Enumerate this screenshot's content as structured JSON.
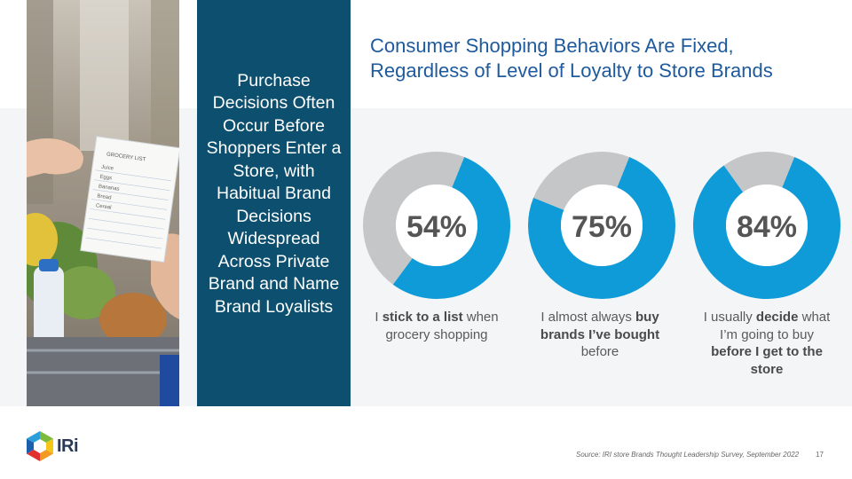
{
  "sidebar": {
    "text": "Purchase Decisions Often Occur Before Shoppers Enter a Store, with Habitual Brand Decisions Widespread Across Private Brand and Name Brand Loyalists"
  },
  "title": {
    "line1": "Consumer Shopping Behaviors Are Fixed,",
    "line2": "Regardless of Level of Loyalty to Store Brands"
  },
  "chart_data": [
    {
      "type": "pie",
      "values": [
        54,
        46
      ],
      "colors": [
        "#0f9bd8",
        "#c4c6c8"
      ],
      "label": "54%",
      "caption": [
        "I ",
        "stick to a list",
        " when grocery shopping"
      ]
    },
    {
      "type": "pie",
      "values": [
        75,
        25
      ],
      "colors": [
        "#0f9bd8",
        "#c4c6c8"
      ],
      "label": "75%",
      "caption": [
        "I almost always ",
        "buy brands I’ve bought",
        " before"
      ]
    },
    {
      "type": "pie",
      "values": [
        84,
        16
      ],
      "colors": [
        "#0f9bd8",
        "#c4c6c8"
      ],
      "label": "84%",
      "caption": [
        "I usually ",
        "decide",
        " what I’m going to buy ",
        "before I get to the store",
        ""
      ]
    }
  ],
  "footer": {
    "source": "Source: IRI store Brands Thought Leadership Survey, September 2022",
    "page": "17",
    "logo_text": "IRi"
  },
  "photo": {
    "note_title": "GROCERY LIST",
    "note_items": [
      "Juice",
      "Eggs",
      "Bananas",
      "Bread",
      "Cereal"
    ]
  }
}
